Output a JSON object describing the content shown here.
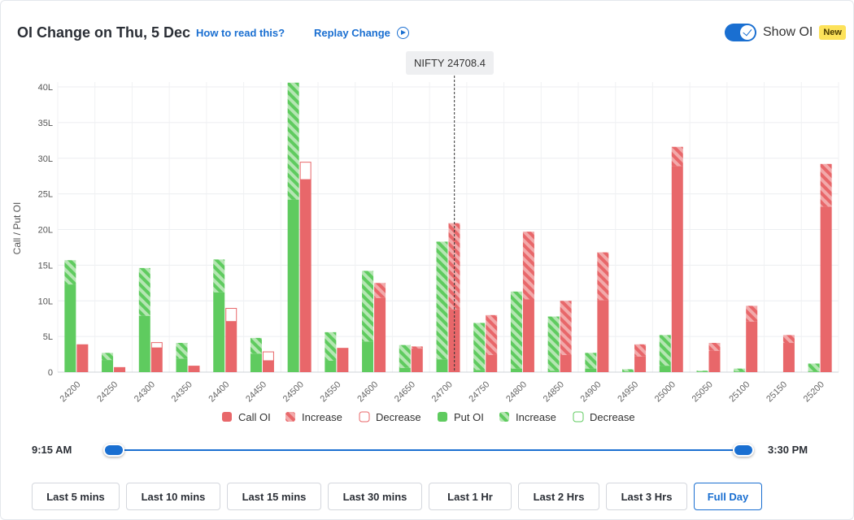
{
  "header": {
    "title": "OI Change on Thu, 5 Dec",
    "how_to_read": "How to read this?",
    "replay": "Replay Change",
    "show_oi_label": "Show OI",
    "new_badge": "New"
  },
  "tooltip": "NIFTY 24708.4",
  "slider": {
    "start_label": "9:15 AM",
    "end_label": "3:30 PM"
  },
  "range_buttons": [
    {
      "label": "Last 5 mins",
      "active": false
    },
    {
      "label": "Last 10 mins",
      "active": false
    },
    {
      "label": "Last 15 mins",
      "active": false
    },
    {
      "label": "Last 30 mins",
      "active": false
    },
    {
      "label": "Last 1 Hr",
      "active": false
    },
    {
      "label": "Last 2 Hrs",
      "active": false
    },
    {
      "label": "Last 3 Hrs",
      "active": false
    },
    {
      "label": "Full Day",
      "active": true
    }
  ],
  "colors": {
    "call": "#e8676a",
    "call_light": "#f2a9aa",
    "put": "#5fcb5f",
    "put_light": "#b5e6b3",
    "accent": "#1a6fd1"
  },
  "chart_data": {
    "type": "bar",
    "ylabel": "Call / Put OI",
    "ylim": [
      0,
      40
    ],
    "yticks": [
      "0",
      "5L",
      "10L",
      "15L",
      "20L",
      "25L",
      "30L",
      "35L",
      "40L"
    ],
    "spot_line_at": 24708.4,
    "categories": [
      "24200",
      "24250",
      "24300",
      "24350",
      "24400",
      "24450",
      "24500",
      "24550",
      "24600",
      "24650",
      "24700",
      "24750",
      "24800",
      "24850",
      "24900",
      "24950",
      "25000",
      "25050",
      "25100",
      "25150",
      "25200"
    ],
    "series": [
      {
        "name": "Put OI",
        "base": [
          12.3,
          1.7,
          7.9,
          1.9,
          11.2,
          2.6,
          24.2,
          1.6,
          4.3,
          0.6,
          1.8,
          0.3,
          0.5,
          0.2,
          0.5,
          0.1,
          0.9,
          0.1,
          0.1,
          0.0,
          0.1
        ],
        "increase": [
          3.4,
          1.0,
          6.7,
          2.2,
          4.6,
          2.2,
          16.4,
          4.0,
          9.9,
          3.2,
          16.5,
          6.6,
          10.8,
          7.6,
          2.2,
          0.3,
          4.3,
          0.1,
          0.4,
          0.0,
          1.1
        ]
      },
      {
        "name": "Call OI",
        "base": [
          3.9,
          0.7,
          3.4,
          0.9,
          7.1,
          1.6,
          27.0,
          3.4,
          10.4,
          3.3,
          8.8,
          2.4,
          10.2,
          2.4,
          10.1,
          2.2,
          28.9,
          3.0,
          7.1,
          4.1,
          23.2
        ],
        "increase": [
          0.0,
          0.0,
          0.0,
          0.0,
          0.0,
          0.0,
          0.0,
          0.0,
          2.1,
          0.3,
          12.1,
          5.6,
          9.5,
          7.6,
          6.7,
          1.7,
          2.7,
          1.1,
          2.2,
          1.1,
          6.0
        ],
        "decrease": [
          0.0,
          0.0,
          0.8,
          0.0,
          1.9,
          1.3,
          2.5,
          0.0,
          0.0,
          0.0,
          0.0,
          0.0,
          0.0,
          0.0,
          0.0,
          0.0,
          0.0,
          0.0,
          0.0,
          0.0,
          0.0
        ]
      }
    ],
    "legend": [
      {
        "label": "Call OI",
        "style": "call-solid"
      },
      {
        "label": "Increase",
        "style": "call-hatch"
      },
      {
        "label": "Decrease",
        "style": "call-outline"
      },
      {
        "label": "Put OI",
        "style": "put-solid"
      },
      {
        "label": "Increase",
        "style": "put-hatch"
      },
      {
        "label": "Decrease",
        "style": "put-outline"
      }
    ]
  }
}
